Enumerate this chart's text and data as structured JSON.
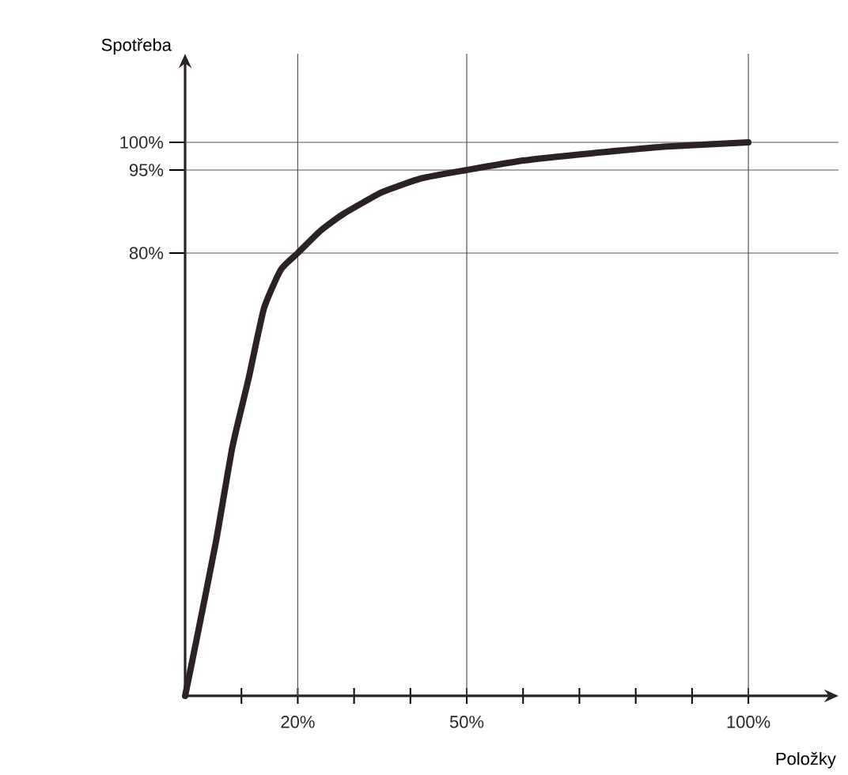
{
  "chart_data": {
    "type": "line",
    "xlabel": "Položky",
    "ylabel": "Spotřeba",
    "x": [
      0,
      2,
      5.5,
      8.4,
      11.2,
      14,
      17,
      20,
      24,
      28,
      35,
      42,
      50,
      60,
      72,
      85,
      100
    ],
    "series": [
      {
        "color": "#2b2222",
        "values": [
          0,
          10,
          28,
          45,
          57,
          70,
          77,
          80,
          84,
          87,
          91,
          93.5,
          95,
          96.7,
          98,
          99.2,
          100
        ]
      }
    ],
    "xlim": [
      0,
      116
    ],
    "ylim": [
      0,
      116
    ],
    "xticks": [
      {
        "value": 10,
        "label": null
      },
      {
        "value": 20,
        "label": "20%"
      },
      {
        "value": 30,
        "label": null
      },
      {
        "value": 40,
        "label": null
      },
      {
        "value": 50,
        "label": "50%"
      },
      {
        "value": 60,
        "label": null
      },
      {
        "value": 70,
        "label": null
      },
      {
        "value": 80,
        "label": null
      },
      {
        "value": 90,
        "label": null
      },
      {
        "value": 100,
        "label": "100%"
      }
    ],
    "yticks": [
      {
        "value": 80,
        "label": "80%"
      },
      {
        "value": 95,
        "label": "95%"
      },
      {
        "value": 100,
        "label": "100%"
      }
    ],
    "ref_lines": [
      {
        "axis": "y",
        "value": 80,
        "color": "#555555"
      },
      {
        "axis": "y",
        "value": 95,
        "color": "#555555"
      },
      {
        "axis": "y",
        "value": 100,
        "color": "#555555"
      },
      {
        "axis": "x",
        "value": 20,
        "color": "#555555"
      },
      {
        "axis": "x",
        "value": 50,
        "color": "#555555"
      },
      {
        "axis": "x",
        "value": 100,
        "color": "#555555"
      }
    ],
    "grid": false,
    "marker": "none",
    "line_style": "solid"
  }
}
